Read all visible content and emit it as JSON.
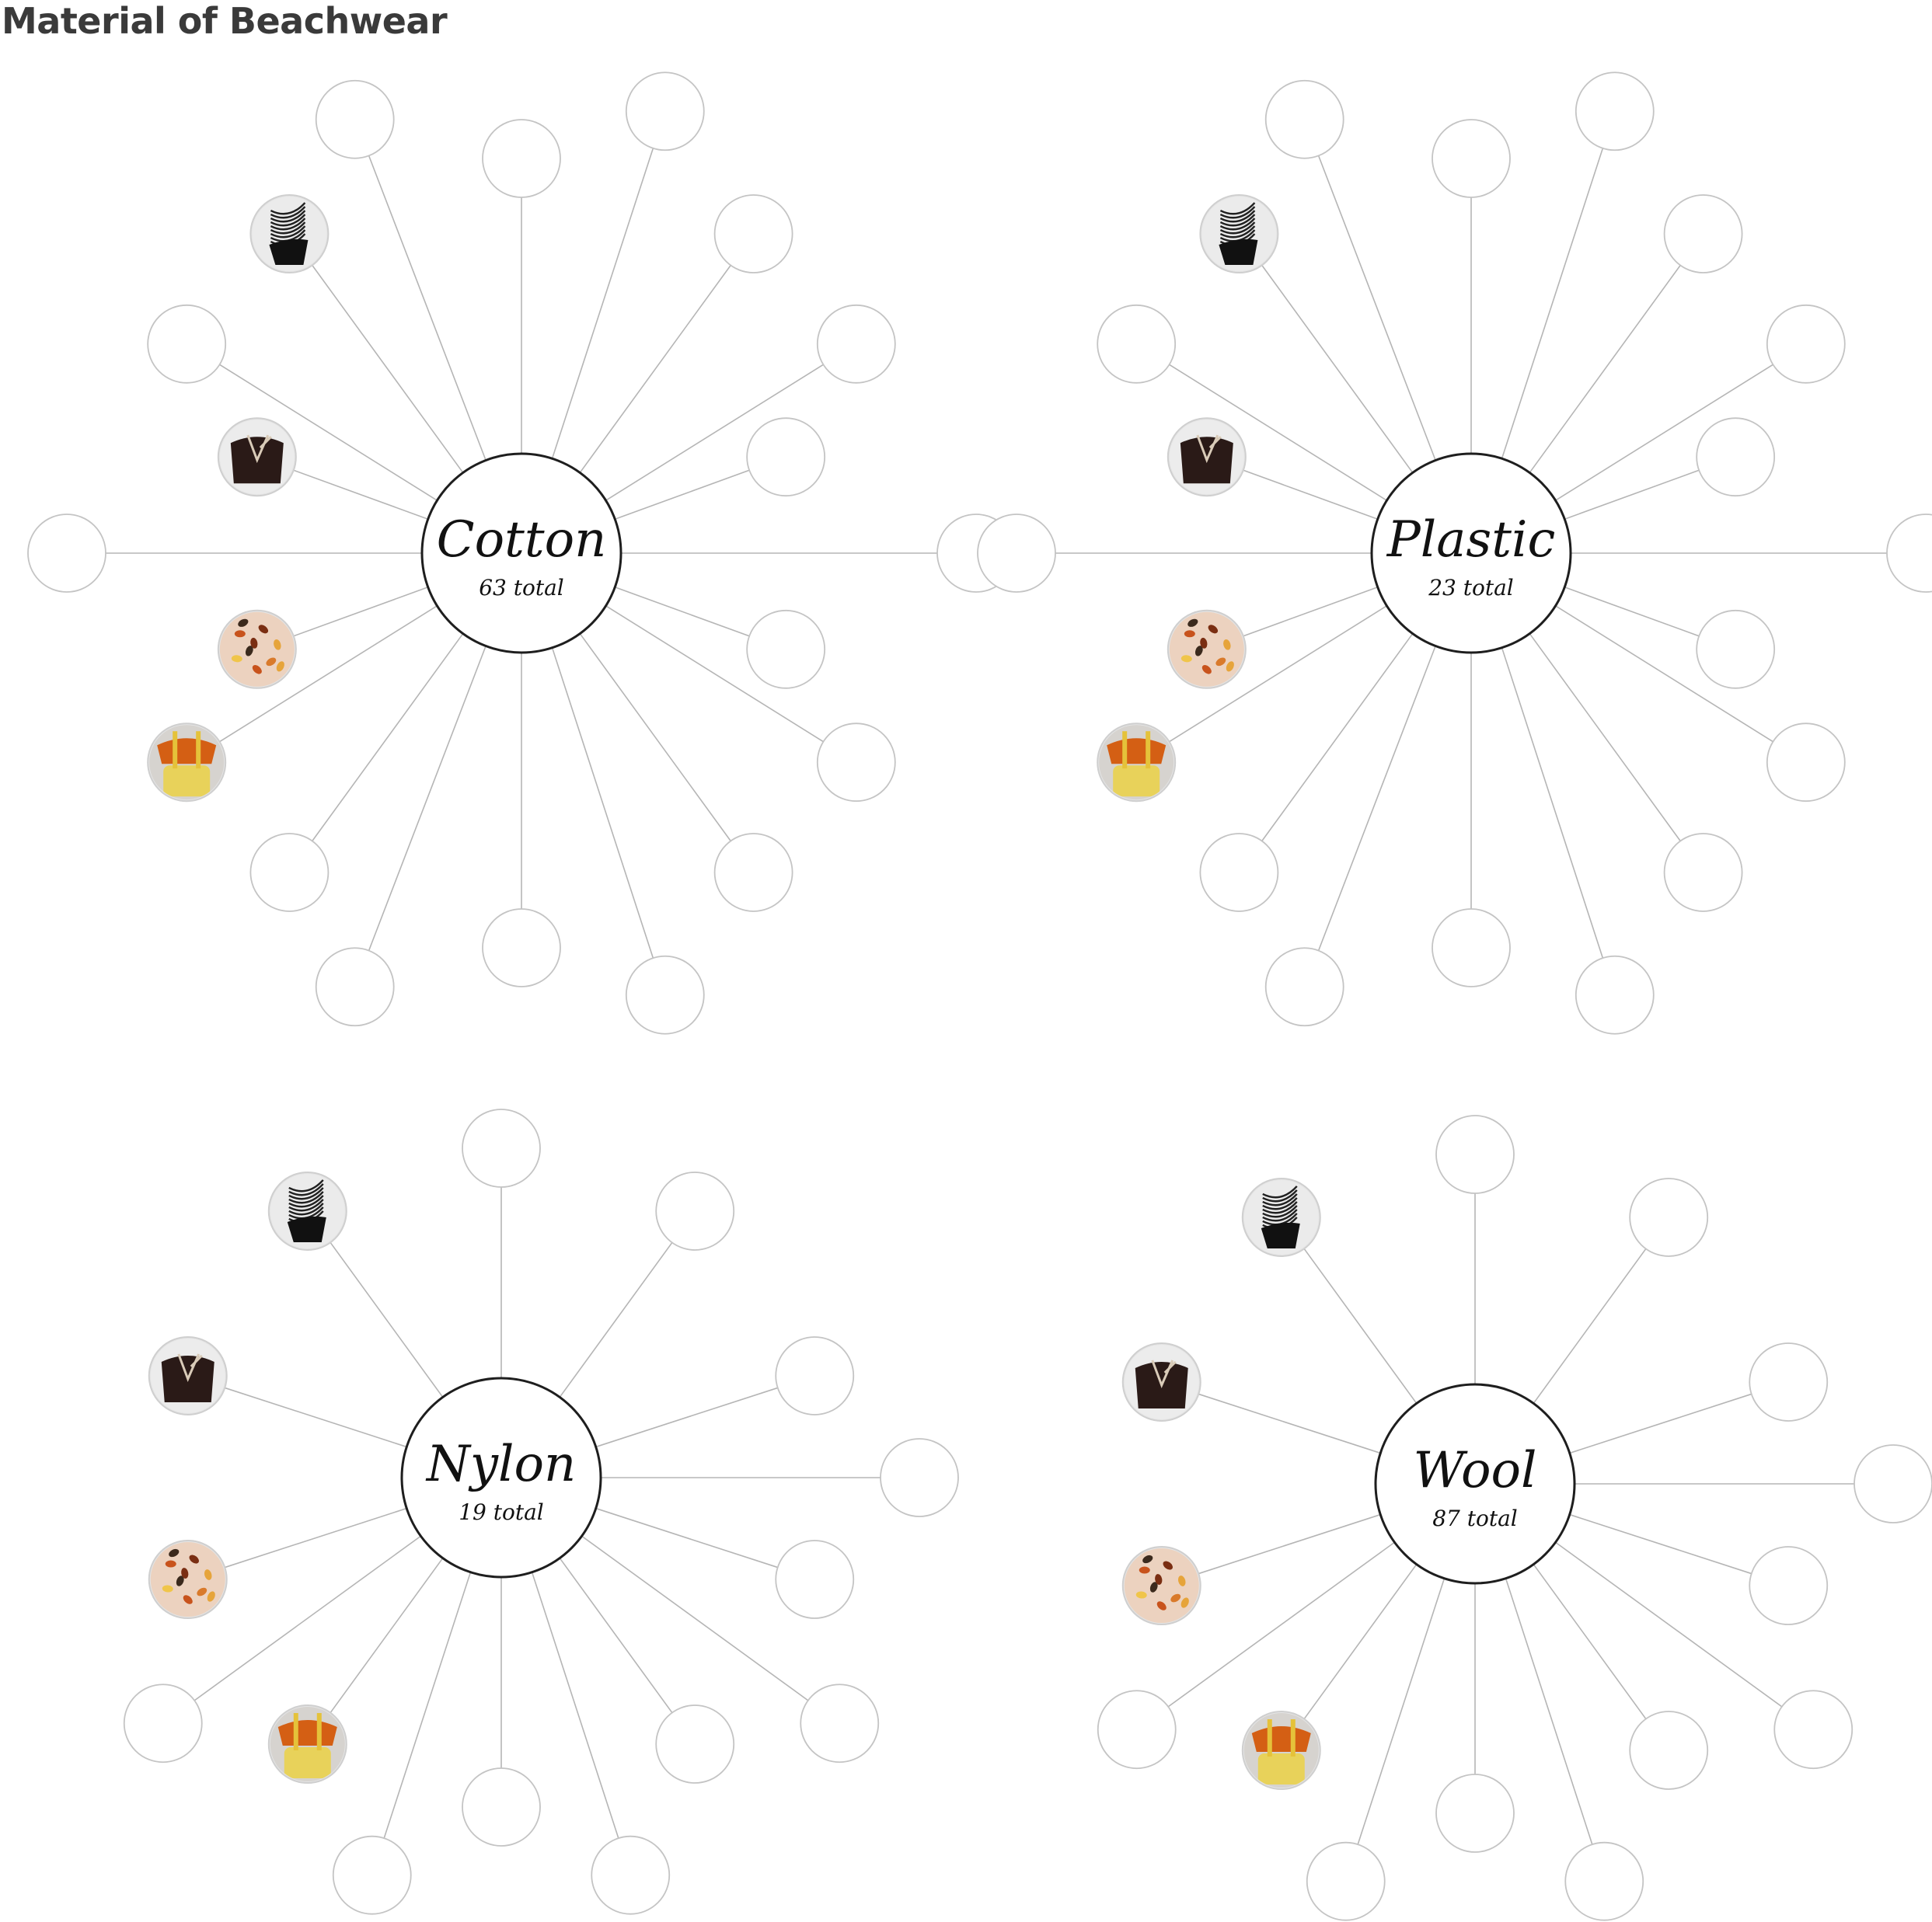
{
  "title": "Material of Beachwear",
  "colors": {
    "spoke": "#b5b5b5",
    "empty_node": "#c4c4c4",
    "hub_stroke": "#1e1e1e",
    "text": "#111111",
    "title": "#3a3a3a"
  },
  "materials": [
    {
      "name": "Cotton",
      "total_label": "63 total",
      "spoke_count": 20,
      "garments_shown": [
        "striped-swimsuit",
        "dark-bathing-suit",
        "printed-fabric",
        "yellow-orange-outfit"
      ]
    },
    {
      "name": "Plastic",
      "total_label": "23 total",
      "spoke_count": 20,
      "garments_shown": [
        "striped-swimsuit",
        "dark-bathing-suit",
        "printed-fabric",
        "yellow-orange-outfit"
      ]
    },
    {
      "name": "Nylon",
      "total_label": "19 total",
      "spoke_count": 15,
      "garments_shown": [
        "striped-swimsuit",
        "dark-bathing-suit",
        "printed-fabric",
        "yellow-orange-outfit"
      ]
    },
    {
      "name": "Wool",
      "total_label": "87 total",
      "spoke_count": 15,
      "garments_shown": [
        "striped-swimsuit",
        "dark-bathing-suit",
        "printed-fabric",
        "yellow-orange-outfit"
      ]
    }
  ]
}
